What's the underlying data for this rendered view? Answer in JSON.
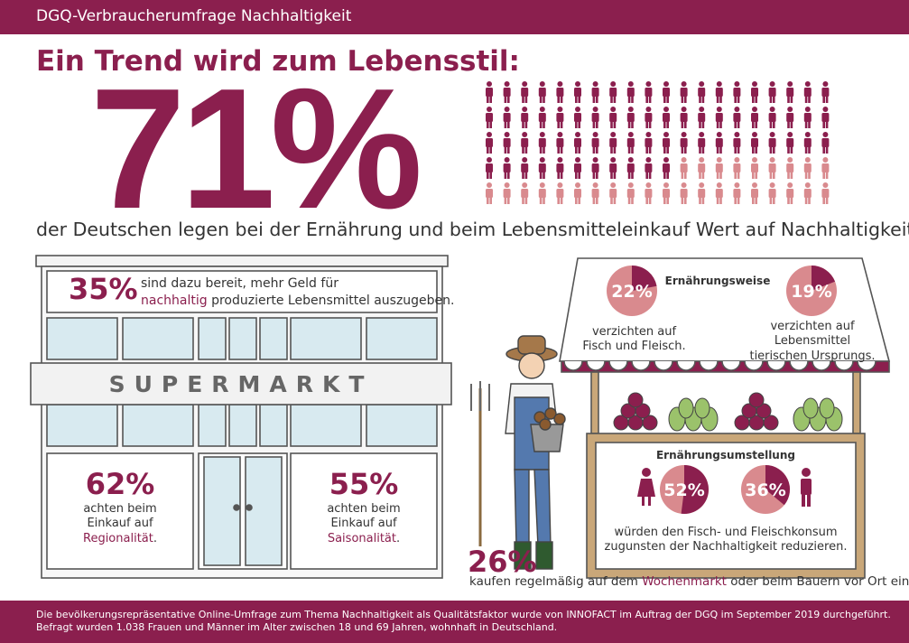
{
  "header": {
    "title": "DGQ-Verbraucherumfrage Nachhaltigkeit"
  },
  "headline": "Ein Trend wird zum Lebensstil:",
  "main_stat": {
    "value": "71%",
    "text": "der Deutschen legen bei der Ernährung und beim Lebensmitteleinkauf Wert auf Nachhaltigkeit."
  },
  "people_chart": {
    "total": 100,
    "highlighted": 71,
    "colors": {
      "highlight": "#8b1f4e",
      "rest": "#d98a8e"
    }
  },
  "supermarket": {
    "sign": "SUPERMARKT",
    "stat_35": {
      "value": "35%",
      "line1": "sind dazu bereit, mehr Geld für",
      "accent": "nachhaltig",
      "line2": " produzierte Lebensmittel auszugeben."
    },
    "stat_62": {
      "value": "62%",
      "line1": "achten beim",
      "line2": "Einkauf auf",
      "accent": "Regionalität",
      "suffix": "."
    },
    "stat_55": {
      "value": "55%",
      "line1": "achten beim",
      "line2": "Einkauf auf",
      "accent": "Saisonalität",
      "suffix": "."
    }
  },
  "market": {
    "diet_title": "Ernährungsweise",
    "stat_22": {
      "value": "22%",
      "fraction": 0.22,
      "line1": "verzichten auf",
      "line2": "Fisch und Fleisch."
    },
    "stat_19": {
      "value": "19%",
      "fraction": 0.19,
      "line1": "verzichten auf",
      "line2": "Lebensmittel",
      "line3": "tierischen Ursprungs."
    },
    "change_title": "Ernährungsumstellung",
    "stat_52": {
      "value": "52%",
      "fraction": 0.52
    },
    "stat_36": {
      "value": "36%",
      "fraction": 0.36
    },
    "change_line1": "würden den Fisch- und Fleischkonsum",
    "change_line2": "zugunsten der Nachhaltigkeit reduzieren."
  },
  "farmer": {
    "value": "26%",
    "pre": "kaufen regelmäßig auf dem ",
    "accent": "Wochenmarkt",
    "post": " oder beim Bauern vor Ort ein."
  },
  "footer": {
    "line1": "Die bevölkerungsrepräsentative Online-Umfrage zum Thema Nachhaltigkeit als Qualitätsfaktor wurde von INNOFACT im Auftrag der DGQ im September 2019 durchgeführt.",
    "line2": "Befragt wurden 1.038 Frauen und Männer im Alter zwischen 18 und 69 Jahren, wohnhaft in Deutschland."
  }
}
